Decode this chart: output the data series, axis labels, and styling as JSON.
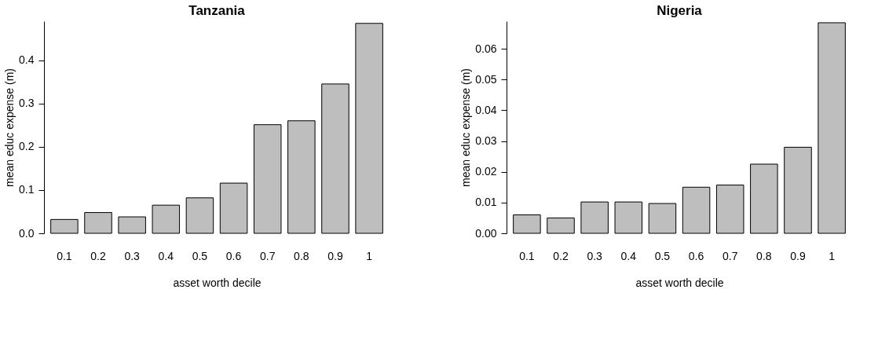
{
  "chart_data": [
    {
      "type": "bar",
      "title": "Tanzania",
      "xlabel": "asset worth decile",
      "ylabel": "mean educ expense (m)",
      "categories": [
        "0.1",
        "0.2",
        "0.3",
        "0.4",
        "0.5",
        "0.6",
        "0.7",
        "0.8",
        "0.9",
        "1"
      ],
      "series": [
        {
          "color": "#bebebe",
          "values": [
            0.032,
            0.048,
            0.038,
            0.065,
            0.082,
            0.116,
            0.251,
            0.26,
            0.345,
            0.485
          ]
        }
      ],
      "ylim": [
        0,
        0.49
      ],
      "yticks": [
        {
          "value": 0,
          "label": "0.0"
        },
        0.1,
        0.2,
        0.3,
        0.4
      ],
      "grid": false
    },
    {
      "type": "bar",
      "title": "Nigeria",
      "xlabel": "asset worth decile",
      "ylabel": "mean educ expense (m)",
      "categories": [
        "0.1",
        "0.2",
        "0.3",
        "0.4",
        "0.5",
        "0.6",
        "0.7",
        "0.8",
        "0.9",
        "1"
      ],
      "series": [
        {
          "color": "#bebebe",
          "values": [
            0.006,
            0.005,
            0.0102,
            0.0102,
            0.0097,
            0.015,
            0.0157,
            0.0225,
            0.028,
            0.0685
          ]
        }
      ],
      "ylim": [
        0,
        0.069
      ],
      "yticks": [
        {
          "value": 0,
          "label": "0.00"
        },
        {
          "value": 0.01,
          "label": "0.01"
        },
        {
          "value": 0.02,
          "label": "0.02"
        },
        {
          "value": 0.03,
          "label": "0.03"
        },
        {
          "value": 0.04,
          "label": "0.04"
        },
        {
          "value": 0.05,
          "label": "0.05"
        },
        {
          "value": 0.06,
          "label": "0.06"
        }
      ],
      "grid": false
    }
  ]
}
